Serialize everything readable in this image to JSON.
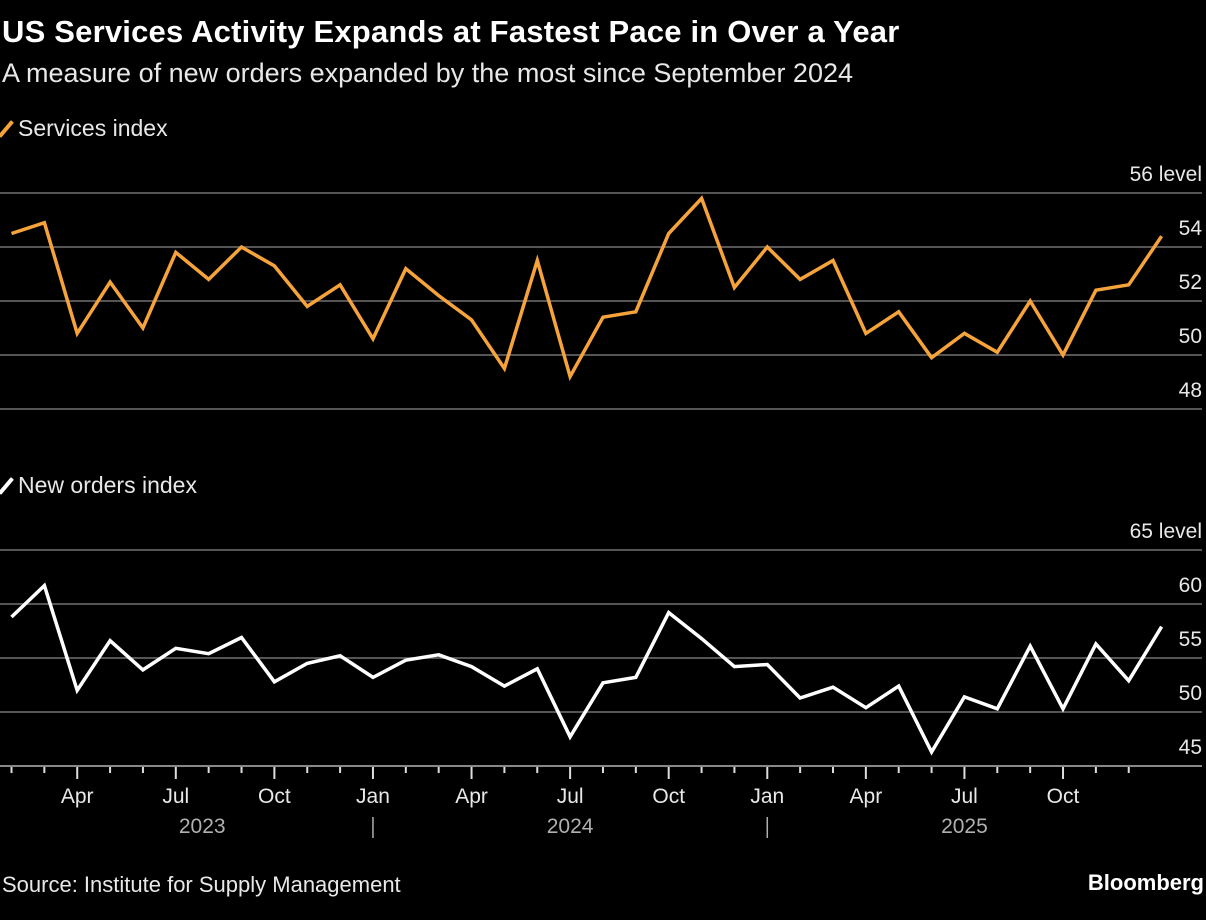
{
  "chart_data": [
    {
      "type": "line",
      "title": "US Services Activity Expands at Fastest Pace in Over a Year",
      "subtitle": "A measure of new orders expanded by the most since September 2024",
      "legend": "Services index",
      "unit_label": "56 level",
      "color": "#f5a33a",
      "ylim": [
        48,
        56
      ],
      "yticks": [
        54,
        52,
        50,
        48
      ],
      "series": [
        {
          "name": "Services index",
          "values": [
            54.5,
            54.9,
            50.8,
            52.7,
            51.0,
            53.8,
            52.8,
            54.0,
            53.3,
            51.8,
            52.6,
            50.6,
            53.2,
            52.2,
            51.3,
            49.5,
            53.5,
            49.2,
            51.4,
            51.6,
            54.5,
            55.8,
            52.5,
            54.0,
            52.8,
            53.5,
            50.8,
            51.6,
            49.9,
            50.8,
            50.1,
            52.0,
            50.0,
            52.4,
            52.6,
            54.4
          ]
        }
      ]
    },
    {
      "type": "line",
      "legend": "New orders index",
      "unit_label": "65 level",
      "color": "#ffffff",
      "ylim": [
        45,
        65
      ],
      "yticks": [
        60,
        55,
        50,
        45
      ],
      "series": [
        {
          "name": "New orders index",
          "values": [
            58.8,
            61.7,
            52.0,
            56.6,
            53.9,
            55.9,
            55.4,
            56.9,
            52.8,
            54.5,
            55.2,
            53.2,
            54.8,
            55.3,
            54.2,
            52.4,
            54.0,
            47.7,
            52.7,
            53.2,
            59.2,
            56.8,
            54.2,
            54.4,
            51.3,
            52.3,
            50.4,
            52.4,
            46.3,
            51.4,
            50.3,
            56.1,
            50.3,
            56.3,
            52.9,
            57.9
          ]
        }
      ]
    }
  ],
  "x_axis": {
    "start": "Jan 2023",
    "months": 36,
    "tick_labels": [
      {
        "index": 2,
        "label": "Apr"
      },
      {
        "index": 5,
        "label": "Jul"
      },
      {
        "index": 8,
        "label": "Oct"
      },
      {
        "index": 11,
        "label": "Jan"
      },
      {
        "index": 14,
        "label": "Apr"
      },
      {
        "index": 17,
        "label": "Jul"
      },
      {
        "index": 20,
        "label": "Oct"
      },
      {
        "index": 23,
        "label": "Jan"
      },
      {
        "index": 26,
        "label": "Apr"
      },
      {
        "index": 29,
        "label": "Jul"
      },
      {
        "index": 32,
        "label": "Oct"
      }
    ],
    "years": [
      "2023",
      "2024",
      "2025"
    ]
  },
  "footer": {
    "source": "Source: Institute for Supply Management",
    "brand": "Bloomberg"
  }
}
